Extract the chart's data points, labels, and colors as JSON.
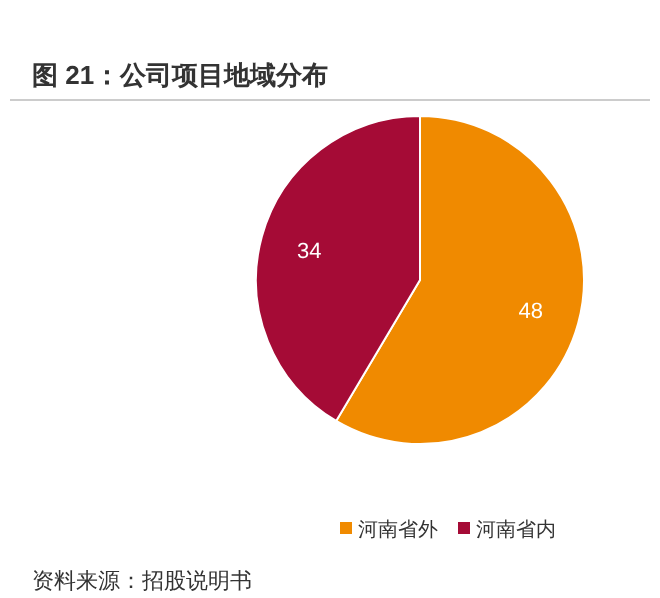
{
  "chart_data": {
    "type": "pie",
    "title": "图 21：公司项目地域分布",
    "categories": [
      "河南省外",
      "河南省内"
    ],
    "values": [
      48,
      34
    ],
    "colors": [
      "#f08a00",
      "#a50b36"
    ],
    "data_labels": true,
    "legend": "bottom right",
    "annotations": [
      "资料来源：招股说明书"
    ]
  }
}
